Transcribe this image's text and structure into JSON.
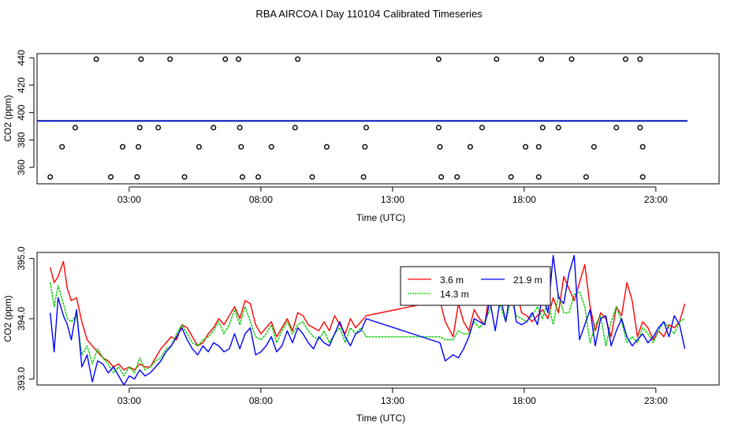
{
  "title": "RBA AIRCOA I  Day 110104  Calibrated Timeseries",
  "chart_data": [
    {
      "type": "scatter",
      "name": "top-panel",
      "xlabel": "Time (UTC)",
      "ylabel": "CO2 (ppm)",
      "xlim": [
        -0.5,
        25.4
      ],
      "ylim": [
        348,
        443
      ],
      "x_ticks": [
        3,
        8,
        13,
        18,
        23
      ],
      "x_tick_labels": [
        "03:00",
        "08:00",
        "13:00",
        "18:00",
        "23:00"
      ],
      "y_ticks": [
        360,
        380,
        400,
        420,
        440
      ],
      "y_tick_labels": [
        "360",
        "380",
        "400",
        "420",
        "440"
      ],
      "series": [
        {
          "name": "points-440",
          "x": [
            1.75,
            3.45,
            4.55,
            6.65,
            7.15,
            9.4,
            14.75,
            16.95,
            18.65,
            19.8,
            21.85,
            22.4
          ],
          "y": [
            439,
            439,
            439,
            439,
            439,
            439,
            439,
            439,
            439,
            439,
            439,
            439
          ]
        },
        {
          "name": "points-389",
          "x": [
            0.95,
            3.4,
            4.1,
            6.2,
            7.2,
            9.3,
            12.0,
            14.75,
            16.4,
            18.7,
            19.3,
            21.5,
            22.4
          ],
          "y": [
            389,
            389,
            389,
            389,
            389,
            389,
            389,
            389,
            389,
            389,
            389,
            389,
            389
          ]
        },
        {
          "name": "points-375",
          "x": [
            0.45,
            2.75,
            3.35,
            5.65,
            7.25,
            8.4,
            10.5,
            11.95,
            14.8,
            15.95,
            18.05,
            18.55,
            20.65,
            22.5
          ],
          "y": [
            375,
            375,
            375,
            375,
            375,
            375,
            375,
            375,
            375,
            375,
            375,
            375,
            375,
            375
          ]
        },
        {
          "name": "points-353",
          "x": [
            0.0,
            2.3,
            3.3,
            5.1,
            7.3,
            7.9,
            9.95,
            11.9,
            14.85,
            15.45,
            17.5,
            18.55,
            20.35,
            22.5
          ],
          "y": [
            353,
            353,
            353,
            353,
            353,
            353,
            353,
            353,
            353,
            353,
            353,
            353,
            353,
            353
          ]
        }
      ],
      "lines": [
        {
          "name": "3.6 m",
          "color": "#ff0000",
          "x": [
            -0.5,
            24.2
          ],
          "y": [
            394,
            394
          ]
        },
        {
          "name": "14.3 m",
          "color": "#00cc00",
          "x": [
            -0.5,
            24.2
          ],
          "y": [
            394,
            394
          ]
        },
        {
          "name": "21.9 m",
          "color": "#0000ff",
          "x": [
            -0.5,
            24.2
          ],
          "y": [
            393.8,
            393.8
          ]
        }
      ]
    },
    {
      "type": "line",
      "name": "bottom-panel",
      "xlabel": "Time (UTC)",
      "ylabel": "CO2 (ppm)",
      "xlim": [
        -0.5,
        25.4
      ],
      "ylim": [
        392.9,
        395.1
      ],
      "x_ticks": [
        3,
        8,
        13,
        18,
        23
      ],
      "x_tick_labels": [
        "03:00",
        "08:00",
        "13:00",
        "18:00",
        "23:00"
      ],
      "y_ticks": [
        393.0,
        394.0,
        395.0
      ],
      "y_tick_labels": [
        "393.0",
        "394.0",
        "395.0"
      ],
      "legend": {
        "position": "top-center",
        "entries": [
          "3.6 m",
          "14.3 m",
          "21.9 m"
        ]
      },
      "series": [
        {
          "name": "3.6 m",
          "color": "#ff0000",
          "x": [
            0.0,
            0.15,
            0.3,
            0.5,
            0.65,
            0.8,
            1.0,
            1.2,
            1.4,
            1.6,
            1.8,
            2.0,
            2.2,
            2.4,
            2.6,
            2.8,
            3.0,
            3.2,
            3.4,
            3.6,
            3.8,
            4.0,
            4.2,
            4.4,
            4.6,
            4.8,
            5.0,
            5.2,
            5.4,
            5.6,
            5.8,
            6.0,
            6.2,
            6.4,
            6.6,
            6.8,
            7.0,
            7.2,
            7.4,
            7.6,
            7.8,
            8.0,
            8.2,
            8.4,
            8.6,
            8.8,
            9.0,
            9.2,
            9.4,
            9.6,
            9.8,
            10.0,
            10.2,
            10.4,
            10.6,
            10.8,
            11.0,
            11.2,
            11.4,
            11.6,
            11.8,
            12.0,
            14.8,
            15.0,
            15.3,
            15.5,
            15.7,
            15.9,
            16.1,
            16.3,
            16.5,
            16.7,
            16.9,
            17.1,
            17.3,
            17.5,
            17.7,
            17.9,
            18.1,
            18.3,
            18.5,
            18.7,
            18.9,
            19.1,
            19.3,
            19.5,
            19.7,
            19.9,
            20.1,
            20.3,
            20.5,
            20.7,
            20.9,
            21.1,
            21.3,
            21.5,
            21.7,
            21.9,
            22.1,
            22.3,
            22.5,
            22.7,
            22.9,
            23.1,
            23.3,
            23.5,
            23.7,
            23.9,
            24.1
          ],
          "y": [
            394.85,
            394.6,
            394.7,
            394.95,
            394.5,
            394.3,
            394.35,
            393.95,
            393.65,
            393.55,
            393.45,
            393.35,
            393.3,
            393.2,
            393.25,
            393.15,
            393.2,
            393.15,
            393.25,
            393.2,
            393.2,
            393.35,
            393.5,
            393.6,
            393.7,
            393.65,
            393.9,
            393.85,
            393.7,
            393.55,
            393.6,
            393.75,
            393.85,
            394.0,
            393.9,
            394.05,
            394.2,
            394.0,
            394.3,
            394.25,
            393.9,
            393.75,
            393.85,
            393.95,
            393.7,
            393.85,
            394.0,
            393.8,
            394.1,
            394.05,
            393.9,
            393.85,
            393.8,
            393.95,
            393.8,
            394.05,
            393.9,
            393.75,
            394.0,
            393.85,
            393.95,
            394.05,
            394.3,
            393.95,
            393.7,
            394.25,
            393.95,
            393.8,
            394.15,
            394.0,
            393.9,
            394.5,
            394.6,
            394.55,
            394.35,
            394.45,
            394.5,
            394.1,
            394.05,
            393.95,
            394.05,
            394.15,
            394.0,
            394.35,
            394.1,
            394.7,
            394.5,
            394.3,
            394.6,
            394.9,
            394.2,
            393.8,
            394.1,
            394.0,
            393.7,
            394.2,
            394.05,
            394.6,
            394.3,
            393.7,
            393.95,
            393.85,
            393.65,
            393.8,
            393.7,
            393.9,
            393.85,
            393.95,
            394.25
          ]
        },
        {
          "name": "14.3 m",
          "color": "#00cc00",
          "x": [
            0.0,
            0.15,
            0.3,
            0.5,
            0.65,
            0.8,
            1.0,
            1.2,
            1.4,
            1.6,
            1.8,
            2.0,
            2.2,
            2.4,
            2.6,
            2.8,
            3.0,
            3.2,
            3.4,
            3.6,
            3.8,
            4.0,
            4.2,
            4.4,
            4.6,
            4.8,
            5.0,
            5.2,
            5.4,
            5.6,
            5.8,
            6.0,
            6.2,
            6.4,
            6.6,
            6.8,
            7.0,
            7.2,
            7.4,
            7.6,
            7.8,
            8.0,
            8.2,
            8.4,
            8.6,
            8.8,
            9.0,
            9.2,
            9.4,
            9.6,
            9.8,
            10.0,
            10.2,
            10.4,
            10.6,
            10.8,
            11.0,
            11.2,
            11.4,
            11.6,
            11.8,
            12.0,
            14.8,
            15.0,
            15.3,
            15.5,
            15.7,
            15.9,
            16.1,
            16.3,
            16.5,
            16.7,
            16.9,
            17.1,
            17.3,
            17.5,
            17.7,
            17.9,
            18.1,
            18.3,
            18.5,
            18.7,
            18.9,
            19.1,
            19.3,
            19.5,
            19.7,
            19.9,
            20.1,
            20.3,
            20.5,
            20.7,
            20.9,
            21.1,
            21.3,
            21.5,
            21.7,
            21.9,
            22.1,
            22.3,
            22.5,
            22.7,
            22.9,
            23.1,
            23.3,
            23.5,
            23.7,
            23.9,
            24.1
          ],
          "y": [
            394.6,
            394.2,
            394.55,
            394.25,
            394.0,
            393.95,
            394.05,
            393.4,
            393.55,
            393.25,
            393.5,
            393.35,
            393.25,
            393.1,
            393.2,
            393.05,
            393.2,
            393.1,
            393.35,
            393.15,
            393.2,
            393.3,
            393.35,
            393.5,
            393.55,
            393.75,
            393.9,
            393.75,
            393.6,
            393.55,
            393.65,
            393.7,
            393.8,
            393.95,
            393.75,
            393.9,
            394.15,
            393.9,
            394.2,
            393.95,
            393.7,
            393.65,
            393.75,
            393.9,
            393.6,
            393.8,
            393.95,
            393.75,
            393.9,
            393.95,
            393.8,
            393.7,
            393.65,
            393.8,
            393.6,
            393.75,
            393.85,
            393.6,
            393.85,
            393.75,
            393.85,
            393.7,
            393.7,
            393.65,
            393.65,
            393.8,
            393.75,
            393.75,
            393.95,
            393.85,
            393.95,
            394.15,
            394.45,
            394.2,
            393.95,
            394.35,
            394.05,
            394.0,
            393.95,
            394.05,
            394.2,
            394.0,
            394.3,
            393.9,
            394.4,
            394.1,
            394.1,
            394.4,
            394.45,
            394.2,
            393.6,
            393.9,
            394.05,
            393.55,
            393.95,
            394.2,
            393.95,
            393.6,
            393.7,
            393.6,
            393.85,
            393.75,
            393.6,
            393.8,
            393.95,
            393.85,
            393.75,
            393.95,
            394.0
          ]
        },
        {
          "name": "21.9 m",
          "color": "#0000ff",
          "x": [
            0.0,
            0.15,
            0.3,
            0.5,
            0.65,
            0.8,
            1.0,
            1.2,
            1.4,
            1.6,
            1.8,
            2.0,
            2.2,
            2.4,
            2.6,
            2.8,
            3.0,
            3.2,
            3.4,
            3.6,
            3.8,
            4.0,
            4.2,
            4.4,
            4.6,
            4.8,
            5.0,
            5.2,
            5.4,
            5.6,
            5.8,
            6.0,
            6.2,
            6.4,
            6.6,
            6.8,
            7.0,
            7.2,
            7.4,
            7.6,
            7.8,
            8.0,
            8.2,
            8.4,
            8.6,
            8.8,
            9.0,
            9.2,
            9.4,
            9.6,
            9.8,
            10.0,
            10.2,
            10.4,
            10.6,
            10.8,
            11.0,
            11.2,
            11.4,
            11.6,
            11.8,
            12.0,
            14.8,
            15.0,
            15.3,
            15.5,
            15.7,
            15.9,
            16.1,
            16.3,
            16.5,
            16.7,
            16.9,
            17.1,
            17.3,
            17.5,
            17.7,
            17.9,
            18.1,
            18.3,
            18.5,
            18.7,
            18.9,
            19.1,
            19.3,
            19.5,
            19.7,
            19.9,
            20.1,
            20.3,
            20.5,
            20.7,
            20.9,
            21.1,
            21.3,
            21.5,
            21.7,
            21.9,
            22.1,
            22.3,
            22.5,
            22.7,
            22.9,
            23.1,
            23.3,
            23.5,
            23.7,
            23.9,
            24.1
          ],
          "y": [
            394.1,
            393.45,
            394.35,
            394.05,
            393.9,
            393.65,
            394.15,
            393.2,
            393.4,
            392.95,
            393.3,
            393.25,
            393.1,
            393.2,
            393.05,
            392.9,
            393.05,
            393.0,
            393.15,
            393.05,
            393.1,
            393.2,
            393.3,
            393.45,
            393.55,
            393.7,
            393.85,
            393.65,
            393.5,
            393.4,
            393.55,
            393.45,
            393.6,
            393.55,
            393.45,
            393.5,
            393.75,
            393.5,
            393.75,
            393.85,
            393.4,
            393.45,
            393.55,
            393.7,
            393.45,
            393.55,
            393.8,
            393.6,
            393.85,
            393.75,
            393.6,
            393.5,
            393.7,
            393.6,
            393.55,
            393.75,
            393.95,
            393.7,
            393.55,
            393.75,
            393.8,
            394.0,
            393.6,
            393.3,
            393.4,
            393.35,
            393.5,
            393.7,
            394.0,
            393.95,
            393.9,
            394.3,
            393.8,
            394.35,
            393.95,
            394.55,
            393.95,
            393.9,
            393.95,
            394.1,
            393.9,
            394.4,
            394.1,
            395.05,
            394.35,
            394.25,
            394.75,
            395.05,
            393.65,
            393.9,
            394.15,
            393.55,
            394.0,
            394.05,
            393.55,
            393.8,
            394.0,
            393.7,
            393.55,
            393.65,
            393.75,
            393.6,
            393.7,
            393.85,
            393.95,
            393.7,
            394.05,
            393.9,
            393.5
          ]
        }
      ]
    }
  ]
}
